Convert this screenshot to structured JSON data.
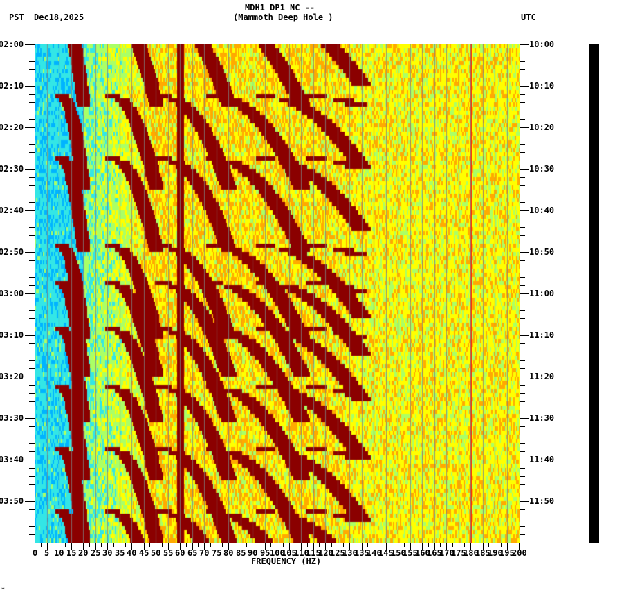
{
  "header": {
    "title_line1": "MDH1 DP1 NC --",
    "title_line2": "(Mammoth Deep Hole )",
    "left_tz": "PST",
    "date": "Dec18,2025",
    "right_tz": "UTC"
  },
  "footer_mark": "*",
  "chart_data": {
    "type": "heatmap",
    "title": "MDH1 DP1 NC -- (Mammoth Deep Hole )",
    "subtitle": "Dec18,2025",
    "xlabel": "FREQUENCY (HZ)",
    "ylabel_left": "PST",
    "ylabel_right": "UTC",
    "x_range": [
      0,
      200
    ],
    "x_ticks": [
      "0",
      "5",
      "10",
      "15",
      "20",
      "25",
      "30",
      "35",
      "40",
      "45",
      "50",
      "55",
      "60",
      "65",
      "70",
      "75",
      "80",
      "85",
      "90",
      "95",
      "100",
      "105",
      "110",
      "115",
      "120",
      "125",
      "130",
      "135",
      "140",
      "145",
      "150",
      "155",
      "160",
      "165",
      "170",
      "175",
      "180",
      "185",
      "190",
      "195",
      "200"
    ],
    "y_ticks_left": [
      "02:00",
      "02:10",
      "02:20",
      "02:30",
      "02:40",
      "02:50",
      "03:00",
      "03:10",
      "03:20",
      "03:30",
      "03:40",
      "03:50"
    ],
    "y_ticks_right": [
      "10:00",
      "10:10",
      "10:20",
      "10:30",
      "10:40",
      "10:50",
      "11:00",
      "11:10",
      "11:20",
      "11:30",
      "11:40",
      "11:50"
    ],
    "grid": true,
    "grid_spacing_hz": 5,
    "colormap": [
      "#0050ff",
      "#00b4ff",
      "#33e6e6",
      "#aaff66",
      "#ffff00",
      "#ffaa00",
      "#ff2000",
      "#8b0000"
    ],
    "persistent_lines_hz": [
      60,
      180
    ],
    "description": "Spectrogram; low power (blue) below ~20 Hz, repeating curved high-power (dark red) harmonic sweeps between ~20-130 Hz roughly every 20 minutes, yellow/orange noise above 130 Hz, strong constant line at 60 Hz"
  }
}
